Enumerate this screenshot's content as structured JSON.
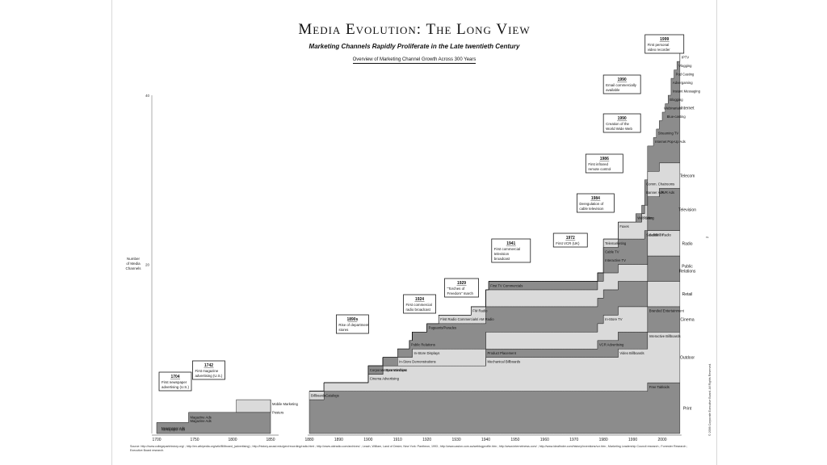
{
  "title": "Media Evolution: The Long View",
  "subtitle": "Marketing Channels Rapidly Proliferate in the Late twentieth Century",
  "subsubtitle": "Overview of Marketing Channel Growth Across 300 Years",
  "source_note": "Source: http://www.collegeparkhistory.org/ ; http://en.wikipedia.org/wiki/Billboard_(advertising) ; http://history.acusd.edu/gen/recording/radio.html ; http://www.oldradio.com/archives/ ; Leach, William, Land of Desire, New York: Pantheon, 1993 ; http://www.caslon.com.au/weblogprofile.htm ; http://www.internetnews.com/ ; http://www.ideafinder.com/history/inventions/vcr.htm ; Marketing Leadership Council research ; Forrester Research ; Executive Board research.",
  "copyright": "© 2006 Corporate Executive Board. All Rights Reserved.",
  "page_mark": "rs",
  "colors": {
    "dark": "#8c8c8c",
    "light": "#dadada",
    "outline": "#1a1a1a",
    "boxbg": "#ffffff"
  },
  "chart_data": {
    "type": "area",
    "title": "Media Evolution: The Long View",
    "xlabel": "",
    "ylabel": "Number of Media Channels",
    "x_ticks": [
      "1700",
      "1750",
      "1800",
      "1850",
      "1880",
      "1890",
      "1900",
      "1910",
      "1920",
      "1930",
      "1940",
      "1950",
      "1960",
      "1970",
      "1980",
      "1990",
      "2000"
    ],
    "y_ticks": [
      "20",
      "40"
    ],
    "ylim": [
      0,
      40
    ],
    "axis_break": "between 1850 and 1880",
    "grid": false,
    "bands": [
      {
        "name": "Print",
        "channels": [
          {
            "label": "Newspaper Ads",
            "year": 1704
          },
          {
            "label": "Magazine Ads",
            "year": 1742
          },
          {
            "label": "Posters",
            "year": 1850
          },
          {
            "label": "Mobile Marketing",
            "year": 1850
          },
          {
            "label": "Catalogs",
            "year": 1885
          },
          {
            "label": "Free Tabloids",
            "year": 1995
          }
        ]
      },
      {
        "name": "Outdoor",
        "channels": [
          {
            "label": "Billboards",
            "year": 1880
          },
          {
            "label": "Cinema Advertising",
            "year": 1900
          },
          {
            "label": "Store Windows",
            "year": 1905
          },
          {
            "label": "Mechanical Billboards",
            "year": 1940
          },
          {
            "label": "Video Billboards",
            "year": 1985
          },
          {
            "label": "Interactive Billboards",
            "year": 1995
          }
        ]
      },
      {
        "name": "Cinema",
        "channels": [
          {
            "label": "Product Placement",
            "year": 1940
          },
          {
            "label": "VCR Advertising",
            "year": 1978
          },
          {
            "label": "Branded Entertainment",
            "year": 1995
          }
        ]
      },
      {
        "name": "Retail",
        "channels": [
          {
            "label": "In-Store Demonstrations",
            "year": 1910
          },
          {
            "label": "In-Store Displays",
            "year": 1915
          },
          {
            "label": "In-Store TV",
            "year": 1980
          }
        ]
      },
      {
        "name": "Public Relations",
        "channels": [
          {
            "label": "Corporate Sponsorships",
            "year": 1900
          },
          {
            "label": "Public Relations",
            "year": 1914
          },
          {
            "label": "Pageants/Parades",
            "year": 1920
          }
        ]
      },
      {
        "name": "Radio",
        "channels": [
          {
            "label": "First Radio Commercials/ AM Radio",
            "year": 1924
          },
          {
            "label": "FM Radio",
            "year": 1935
          },
          {
            "label": "Satellite Radio",
            "year": 1995
          }
        ]
      },
      {
        "name": "Television",
        "channels": [
          {
            "label": "First TV Commercials",
            "year": 1941
          },
          {
            "label": "Interactive TV",
            "year": 1980
          },
          {
            "label": "Cable TV",
            "year": 1980
          },
          {
            "label": "Satellite TV",
            "year": 1994
          },
          {
            "label": "PVR Ads",
            "year": 1999
          }
        ]
      },
      {
        "name": "Telecom",
        "channels": [
          {
            "label": "Telemarketing",
            "year": 1980
          },
          {
            "label": "Faxes",
            "year": 1985
          },
          {
            "label": "Texting",
            "year": 1993
          }
        ]
      },
      {
        "name": "Internet",
        "channels": [
          {
            "label": "Web Sites",
            "year": 1991
          },
          {
            "label": "Banner Ads",
            "year": 1994
          },
          {
            "label": "Comm. Chatrooms",
            "year": 1994
          },
          {
            "label": "Internet Pop-Up Ads",
            "year": 1997
          },
          {
            "label": "Streaming TV",
            "year": 1998
          },
          {
            "label": "Blue-casting",
            "year": 2001
          },
          {
            "label": "Webinarials",
            "year": 2000
          },
          {
            "label": "Blogging",
            "year": 2002
          },
          {
            "label": "Instant Messaging",
            "year": 2003
          },
          {
            "label": "Advergaming",
            "year": 2003
          },
          {
            "label": "Pod Casting",
            "year": 2004
          },
          {
            "label": "Vlogging",
            "year": 2005
          },
          {
            "label": "IPTV",
            "year": 2006
          }
        ]
      }
    ],
    "annotations": [
      {
        "year": "1704",
        "text": "First newspaper advertising (U.S.)"
      },
      {
        "year": "1742",
        "text": "First magazine advertising (U.S.)"
      },
      {
        "year": "1890s",
        "text": "Rise of department stores"
      },
      {
        "year": "1924",
        "text": "First commercial radio broadcast"
      },
      {
        "year": "1929",
        "text": "“Torches of Freedom” march"
      },
      {
        "year": "1941",
        "text": "First commercial television broadcast"
      },
      {
        "year": "1972",
        "text": "First VCR (UK)"
      },
      {
        "year": "1984",
        "text": "Deregulation of cable television"
      },
      {
        "year": "1986",
        "text": "First infrared remote control"
      },
      {
        "year": "1990",
        "text": "Creation of the World Wide Web"
      },
      {
        "year": "1990",
        "text": "Email commercially available"
      },
      {
        "year": "1999",
        "text": "First personal video recorder"
      }
    ]
  }
}
